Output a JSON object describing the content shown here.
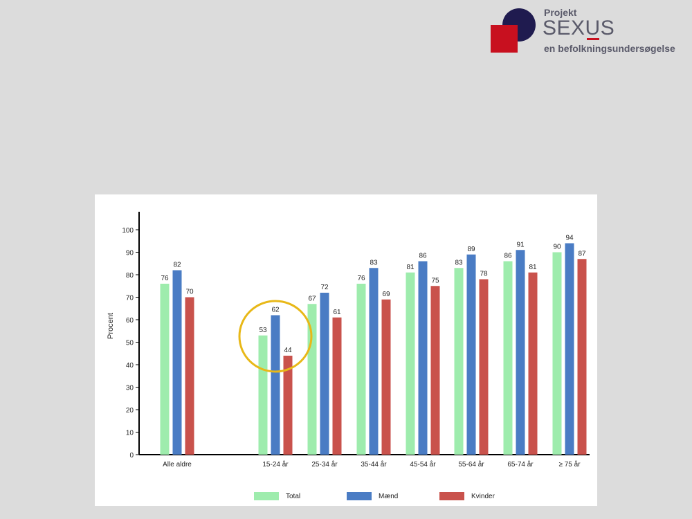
{
  "logo": {
    "line1": "Projekt",
    "line2a": "SEX",
    "line2b": "U",
    "line2c": "S",
    "line3": "en befolkningsundersøgelse",
    "colors": {
      "circle": "#1f1b4f",
      "square": "#c8101f",
      "text": "#5a5a6a"
    }
  },
  "chart_data": {
    "type": "bar",
    "title": "",
    "xlabel": "",
    "ylabel": "Procent",
    "ylim": [
      0,
      100
    ],
    "yticks": [
      0,
      10,
      20,
      30,
      40,
      50,
      60,
      70,
      80,
      90,
      100
    ],
    "categories": [
      "Alle aldre",
      "15-24 år",
      "25-34 år",
      "35-44 år",
      "45-54 år",
      "55-64 år",
      "65-74 år",
      "≥ 75 år"
    ],
    "series": [
      {
        "name": "Total",
        "color": "#9eecad",
        "values": [
          76,
          53,
          67,
          76,
          81,
          83,
          86,
          90
        ]
      },
      {
        "name": "Mænd",
        "color": "#4a7cc4",
        "values": [
          82,
          62,
          72,
          83,
          86,
          89,
          91,
          94
        ]
      },
      {
        "name": "Kvinder",
        "color": "#c9524c",
        "values": [
          70,
          44,
          61,
          69,
          75,
          78,
          81,
          87
        ]
      }
    ],
    "legend_position": "bottom",
    "grid": false,
    "highlight": {
      "category": "15-24 år",
      "shape": "circle",
      "color": "#e8b818"
    }
  }
}
